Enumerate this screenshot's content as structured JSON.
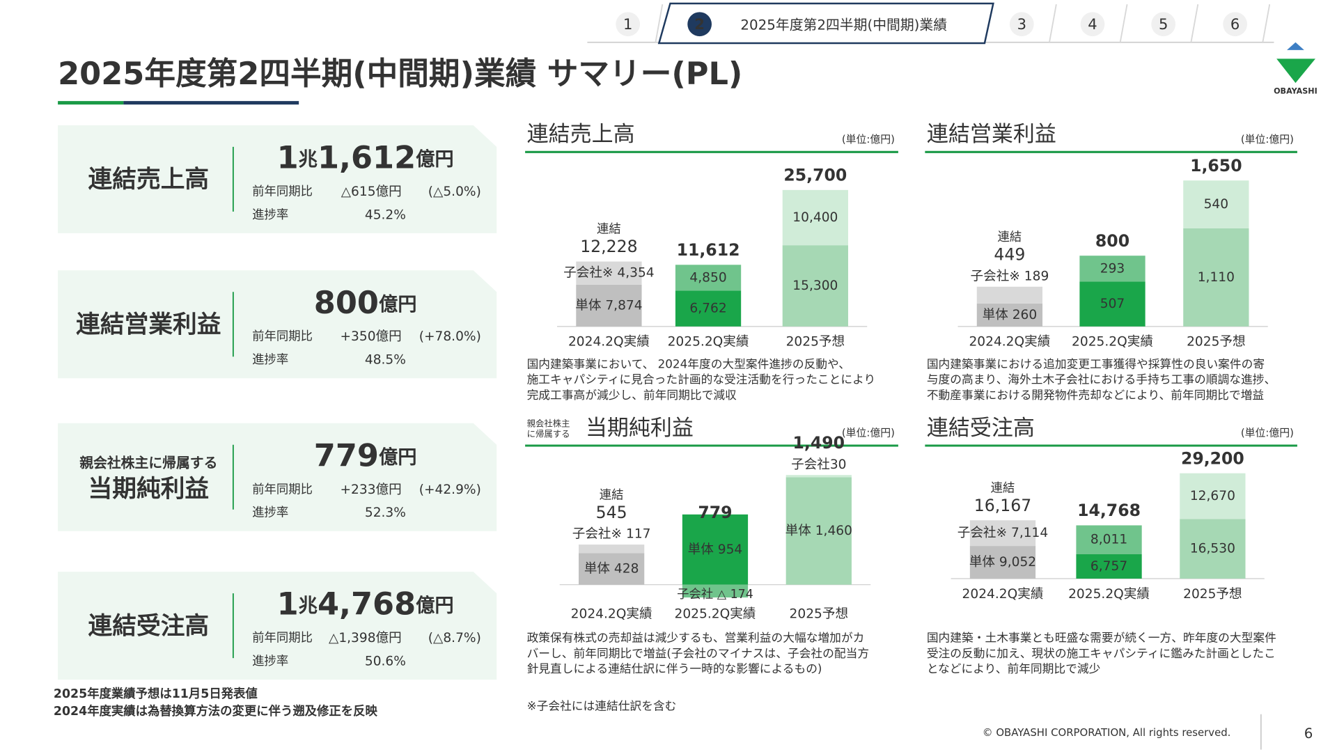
{
  "nav": {
    "tabs": [
      "1",
      "2",
      "3",
      "4",
      "5",
      "6"
    ],
    "current_title": "2025年度第2四半期(中間期)業績"
  },
  "header": {
    "title": "2025年度第2四半期(中間期)業績 サマリー(PL)",
    "logo": "OBAYASHI"
  },
  "cards": [
    {
      "label": "連結売上高",
      "amount": [
        "1",
        "兆",
        "1,612",
        "億円"
      ],
      "yoy_label": "前年同期比",
      "yoy_change": "△615億円",
      "yoy_pct": "(△5.0%)",
      "yoy_color": "#2a9a6a",
      "progress_label": "進捗率",
      "progress": "45.2%"
    },
    {
      "label": "連結営業利益",
      "amount": [
        "800",
        "億円"
      ],
      "yoy_label": "前年同期比",
      "yoy_change": "+350億円",
      "yoy_pct": "(+78.0%)",
      "yoy_color": "#d03030",
      "progress_label": "進捗率",
      "progress": "48.5%"
    },
    {
      "label_sub": "親会社株主に帰属する",
      "label": "当期純利益",
      "amount": [
        "779",
        "億円"
      ],
      "yoy_label": "前年同期比",
      "yoy_change": "+233億円",
      "yoy_pct": "(+42.9%)",
      "yoy_color": "#d03030",
      "progress_label": "進捗率",
      "progress": "52.3%"
    },
    {
      "label": "連結受注高",
      "amount": [
        "1",
        "兆",
        "4,768",
        "億円"
      ],
      "yoy_label": "前年同期比",
      "yoy_change": "△1,398億円",
      "yoy_pct": "(△8.7%)",
      "yoy_color": "#2a9a6a",
      "progress_label": "進捗率",
      "progress": "50.6%"
    }
  ],
  "notes": [
    "2025年度業績予想は11月5日発表値",
    "2024年度実績は為替換算方法の変更に伴う遡及修正を反映"
  ],
  "charts": [
    {
      "title": "連結売上高",
      "unit": "(単位:億円)",
      "categories": [
        "2024.2Q実績",
        "2025.2Q実績",
        "2025予想"
      ],
      "series": [
        {
          "colors": [
            "#bfbfbf",
            "#1aa64a",
            "#a6d8b4"
          ],
          "values": [
            7874,
            6762,
            15300
          ],
          "value_labels": [
            "単体 7,874",
            "6,762",
            "15,300"
          ]
        },
        {
          "colors": [
            "#d9d9d9",
            "#70c48c",
            "#d0ecd8"
          ],
          "values": [
            4354,
            4850,
            10400
          ],
          "value_labels": [
            "子会社※ 4,354",
            "4,850",
            "10,400"
          ]
        }
      ],
      "totals": [
        12228,
        11612,
        25700
      ],
      "total_labels": [
        "12,228",
        "11,612",
        "25,700"
      ],
      "total_colors": [
        "#333333",
        "#1a9a46",
        "#1a9a46"
      ],
      "total_caption": "連結",
      "description": [
        "国内建築事業において、 2024年度の大型案件進捗の反動や、",
        "施工キャパシティに見合った計画的な受注活動を行ったことにより",
        "完成工事高が減少し、前年同期比で減収"
      ]
    },
    {
      "title": "連結営業利益",
      "unit": "(単位:億円)",
      "categories": [
        "2024.2Q実績",
        "2025.2Q実績",
        "2025予想"
      ],
      "series": [
        {
          "colors": [
            "#bfbfbf",
            "#1aa64a",
            "#a6d8b4"
          ],
          "values": [
            260,
            507,
            1110
          ],
          "value_labels": [
            "単体 260",
            "507",
            "1,110"
          ]
        },
        {
          "colors": [
            "#d9d9d9",
            "#70c48c",
            "#d0ecd8"
          ],
          "values": [
            189,
            293,
            540
          ],
          "value_labels": [
            "子会社※ 189",
            "293",
            "540"
          ]
        }
      ],
      "totals": [
        449,
        800,
        1650
      ],
      "total_labels": [
        "449",
        "800",
        "1,650"
      ],
      "total_colors": [
        "#333333",
        "#1a9a46",
        "#1a9a46"
      ],
      "total_caption": "連結",
      "description": [
        "国内建築事業における追加変更工事獲得や採算性の良い案件の寄",
        "与度の高まり、海外土木子会社における手持ち工事の順調な進捗、",
        "不動産事業における開発物件売却などにより、前年同期比で増益"
      ]
    },
    {
      "title_prefix": [
        "親会社株主",
        "に帰属する"
      ],
      "title": "当期純利益",
      "unit": "(単位:億円)",
      "categories": [
        "2024.2Q実績",
        "2025.2Q実績",
        "2025予想"
      ],
      "series": [
        {
          "colors": [
            "#bfbfbf",
            "#1aa64a",
            "#a6d8b4"
          ],
          "values": [
            428,
            954,
            1460
          ],
          "value_labels": [
            "単体 428",
            "単体 954",
            "単体 1,460"
          ]
        },
        {
          "colors": [
            "#d9d9d9",
            "#70c48c",
            "#d0ecd8"
          ],
          "values": [
            117,
            -174,
            30
          ],
          "value_labels": [
            "子会社※ 117",
            "子会社 △ 174",
            "子会社30"
          ]
        }
      ],
      "totals": [
        545,
        779,
        1490
      ],
      "total_labels": [
        "545",
        "779",
        "1,490"
      ],
      "total_colors": [
        "#333333",
        "#1a9a46",
        "#1a9a46"
      ],
      "total_caption": "連結",
      "description": [
        "政策保有株式の売却益は減少するも、営業利益の大幅な増加がカ",
        "バーし、前年同期比で増益(子会社のマイナスは、子会社の配当方",
        "針見直しによる連結仕訳に伴う一時的な影響によるもの)"
      ]
    },
    {
      "title": "連結受注高",
      "unit": "(単位:億円)",
      "categories": [
        "2024.2Q実績",
        "2025.2Q実績",
        "2025予想"
      ],
      "series": [
        {
          "colors": [
            "#bfbfbf",
            "#1aa64a",
            "#a6d8b4"
          ],
          "values": [
            9052,
            6757,
            16530
          ],
          "value_labels": [
            "単体 9,052",
            "6,757",
            "16,530"
          ]
        },
        {
          "colors": [
            "#d9d9d9",
            "#70c48c",
            "#d0ecd8"
          ],
          "values": [
            7114,
            8011,
            12670
          ],
          "value_labels": [
            "子会社※ 7,114",
            "8,011",
            "12,670"
          ]
        }
      ],
      "totals": [
        16167,
        14768,
        29200
      ],
      "total_labels": [
        "16,167",
        "14,768",
        "29,200"
      ],
      "total_colors": [
        "#333333",
        "#1a9a46",
        "#1a9a46"
      ],
      "total_caption": "連結",
      "description": [
        "国内建築・土木事業とも旺盛な需要が続く一方、昨年度の大型案件",
        "受注の反動に加え、現状の施工キャパシティに鑑みた計画としたこ",
        "となどにより、前年同期比で減少"
      ]
    }
  ],
  "footnote": "※子会社には連結仕訳を含む",
  "footer": {
    "copyright": "© OBAYASHI CORPORATION, All rights reserved.",
    "page": "6"
  }
}
